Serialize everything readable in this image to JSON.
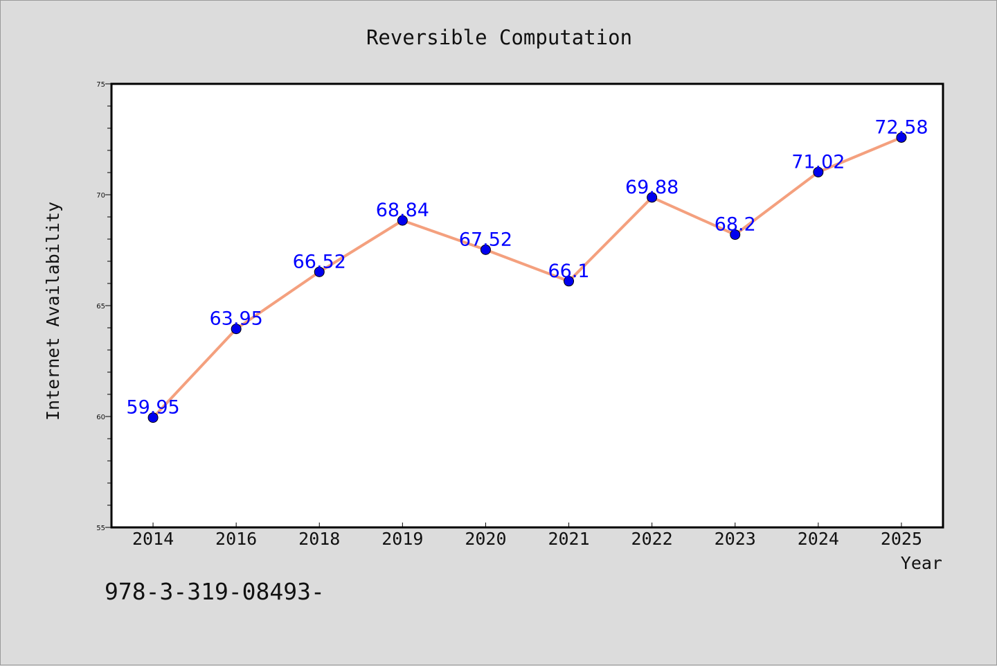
{
  "chart_data": {
    "type": "line",
    "title": "Reversible Computation",
    "xlabel": "Year",
    "ylabel": "Internet Availability",
    "categories": [
      "2014",
      "2016",
      "2018",
      "2019",
      "2020",
      "2021",
      "2022",
      "2023",
      "2024",
      "2025"
    ],
    "series": [
      {
        "values": [
          59.95,
          63.95,
          66.52,
          68.84,
          67.52,
          66.1,
          69.88,
          68.2,
          71.02,
          72.58
        ],
        "labels": [
          "59.95",
          "63.95",
          "66.52",
          "68.84",
          "67.52",
          "66.1",
          "69.88",
          "68.2",
          "71.02",
          "72.58"
        ],
        "line_color": "#f4a07e",
        "marker_color": "#0000ee",
        "label_color": "#0000ff"
      }
    ],
    "ylim": [
      55,
      75
    ],
    "yticks": [
      55,
      60,
      65,
      70,
      75
    ],
    "ytick_labels": [
      "55",
      "60",
      "65",
      "70",
      "75"
    ],
    "grid": false,
    "legend": false
  },
  "footer_text": "978-3-319-08493-"
}
